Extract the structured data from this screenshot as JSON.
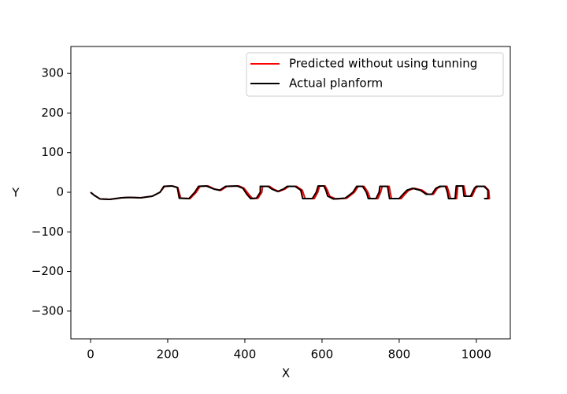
{
  "chart_data": {
    "type": "line",
    "xlabel": "X",
    "ylabel": "Y",
    "xlim": [
      -51,
      1088
    ],
    "ylim": [
      -370,
      368
    ],
    "xticks": [
      0,
      200,
      400,
      600,
      800,
      1000
    ],
    "yticks": [
      {
        "value": -300,
        "label": "−300"
      },
      {
        "value": -200,
        "label": "−200"
      },
      {
        "value": -100,
        "label": "−100"
      },
      0,
      100,
      200,
      300
    ],
    "legend": "upper right",
    "series": [
      {
        "name": "Predicted without using tunning",
        "color": "#ff0000",
        "x": [
          0,
          10,
          25,
          50,
          80,
          100,
          130,
          160,
          180,
          192,
          212,
          226,
          234,
          258,
          274,
          284,
          304,
          322,
          338,
          354,
          384,
          398,
          410,
          420,
          434,
          444,
          446,
          464,
          474,
          488,
          504,
          514,
          534,
          549,
          556,
          580,
          589,
          594,
          608,
          614,
          620,
          636,
          664,
          684,
          694,
          709,
          719,
          725,
          745,
          752,
          756,
          774,
          780,
          805,
          815,
          825,
          840,
          860,
          874,
          889,
          899,
          909,
          924,
          929,
          933,
          949,
          952,
          968,
          973,
          989,
          998,
          1004,
          1022,
          1032,
          1034,
          1024
        ],
        "values": [
          0,
          -8,
          -17,
          -18,
          -14,
          -13,
          -14,
          -10,
          0,
          15,
          16,
          12,
          -15,
          -16,
          0,
          15,
          16,
          8,
          5,
          15,
          16,
          10,
          -5,
          -16,
          -15,
          0,
          15,
          15,
          8,
          2,
          8,
          15,
          15,
          5,
          -16,
          -16,
          0,
          16,
          16,
          5,
          -10,
          -17,
          -15,
          0,
          15,
          15,
          0,
          -16,
          -16,
          0,
          15,
          15,
          -16,
          -16,
          -5,
          5,
          10,
          5,
          -5,
          -5,
          10,
          15,
          15,
          0,
          -16,
          -16,
          16,
          16,
          -10,
          -10,
          10,
          15,
          15,
          5,
          -16,
          -16
        ]
      },
      {
        "name": "Actual planform",
        "color": "#000000",
        "x": [
          0,
          10,
          25,
          50,
          80,
          100,
          130,
          160,
          180,
          190,
          210,
          225,
          230,
          255,
          270,
          280,
          300,
          320,
          335,
          350,
          380,
          395,
          405,
          415,
          430,
          440,
          440,
          460,
          470,
          485,
          500,
          510,
          530,
          545,
          550,
          575,
          585,
          590,
          605,
          610,
          615,
          630,
          660,
          680,
          690,
          705,
          715,
          720,
          740,
          748,
          750,
          770,
          775,
          800,
          810,
          820,
          835,
          855,
          870,
          885,
          895,
          905,
          920,
          925,
          928,
          945,
          948,
          965,
          968,
          985,
          995,
          1000,
          1020,
          1030,
          1030,
          1020
        ],
        "values": [
          0,
          -8,
          -17,
          -18,
          -14,
          -13,
          -14,
          -10,
          0,
          15,
          16,
          12,
          -15,
          -16,
          0,
          15,
          16,
          8,
          5,
          15,
          16,
          10,
          -5,
          -16,
          -15,
          0,
          15,
          15,
          8,
          2,
          8,
          15,
          15,
          5,
          -16,
          -16,
          0,
          16,
          16,
          5,
          -10,
          -17,
          -15,
          0,
          15,
          15,
          0,
          -16,
          -16,
          0,
          15,
          15,
          -16,
          -16,
          -5,
          5,
          10,
          5,
          -5,
          -5,
          10,
          15,
          15,
          0,
          -16,
          -16,
          16,
          16,
          -10,
          -10,
          10,
          15,
          15,
          5,
          -16,
          -16
        ]
      }
    ]
  }
}
